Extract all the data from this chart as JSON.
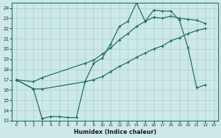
{
  "xlabel": "Humidex (Indice chaleur)",
  "ylabel": "",
  "bg_color": "#cce8e8",
  "grid_color": "#aacccc",
  "line_color": "#1a6b5a",
  "xlim": [
    -0.5,
    23.5
  ],
  "ylim": [
    13,
    24.5
  ],
  "xticks": [
    0,
    1,
    2,
    3,
    4,
    5,
    6,
    7,
    8,
    9,
    10,
    11,
    12,
    13,
    14,
    15,
    16,
    17,
    18,
    19,
    20,
    21,
    22,
    23
  ],
  "yticks": [
    13,
    14,
    15,
    16,
    17,
    18,
    19,
    20,
    21,
    22,
    23,
    24
  ],
  "line_jagged_x": [
    0,
    2,
    3,
    4,
    5,
    6,
    7,
    8,
    9,
    10,
    11,
    12,
    13,
    14,
    15,
    16,
    17,
    18,
    19,
    20,
    21,
    22
  ],
  "line_jagged_y": [
    17.0,
    16.1,
    13.2,
    13.4,
    13.4,
    13.3,
    13.3,
    16.8,
    18.6,
    19.1,
    20.5,
    22.2,
    22.7,
    24.5,
    22.7,
    23.8,
    23.7,
    23.7,
    22.8,
    20.1,
    16.2,
    16.5
  ],
  "line_upper_x": [
    0,
    2,
    3,
    8,
    9,
    10,
    11,
    12,
    13,
    14,
    15,
    16,
    17,
    18,
    19,
    20,
    21,
    22
  ],
  "line_upper_y": [
    17.0,
    16.8,
    17.2,
    18.6,
    18.9,
    19.5,
    20.1,
    20.9,
    21.5,
    22.2,
    22.7,
    23.1,
    23.0,
    23.2,
    23.0,
    22.9,
    22.8,
    22.5
  ],
  "line_lower_x": [
    0,
    2,
    3,
    8,
    9,
    10,
    11,
    12,
    13,
    14,
    15,
    16,
    17,
    18,
    19,
    20,
    21,
    22
  ],
  "line_lower_y": [
    17.0,
    16.1,
    16.1,
    16.8,
    17.0,
    17.3,
    17.8,
    18.3,
    18.7,
    19.2,
    19.6,
    20.0,
    20.3,
    20.8,
    21.1,
    21.5,
    21.8,
    22.0
  ]
}
